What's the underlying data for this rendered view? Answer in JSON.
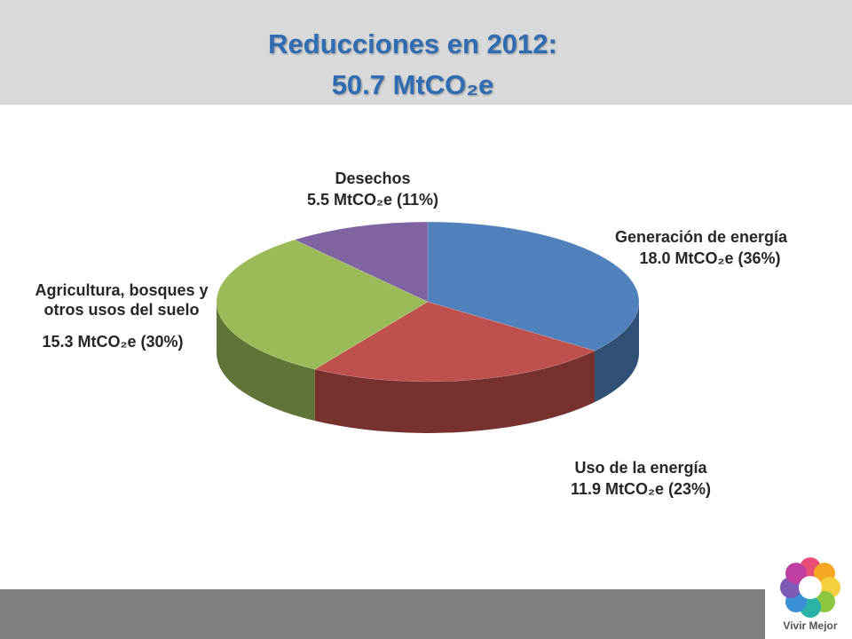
{
  "chart_data": {
    "type": "pie3d",
    "title": "Reducciones en 2012:",
    "subtitle": "50.7 MtCO₂e",
    "categories": [
      "Generación de energía",
      "Uso de la energía",
      "Agricultura, bosques y otros usos del suelo",
      "Desechos"
    ],
    "values": [
      18.0,
      11.9,
      15.3,
      5.5
    ],
    "value_labels": [
      "18.0 MtCO₂e (36%)",
      "11.9 MtCO₂e (23%)",
      "15.3 MtCO₂e (30%)",
      "5.5 MtCO₂e (11%)"
    ],
    "colors": [
      "#4f81bd",
      "#c0504d",
      "#9bbb59",
      "#8064a2"
    ]
  },
  "footer": {
    "logo_text": "Vivir Mejor"
  }
}
